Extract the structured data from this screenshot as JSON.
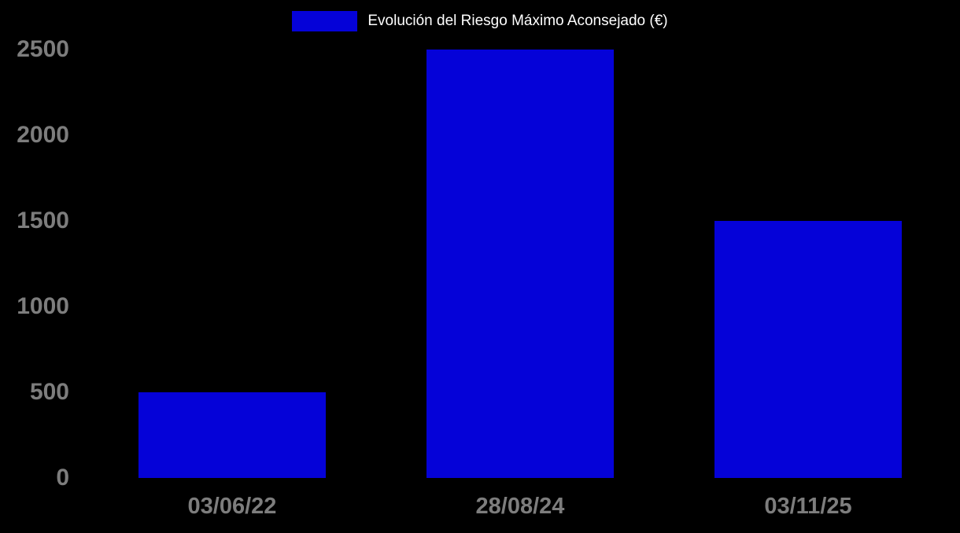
{
  "chart_data": {
    "type": "bar",
    "title": "Evolución del Riesgo Máximo Aconsejado (€)",
    "categories": [
      "03/06/22",
      "28/08/24",
      "03/11/25"
    ],
    "values": [
      500,
      2500,
      1500
    ],
    "xlabel": "",
    "ylabel": "",
    "ylim": [
      0,
      2500
    ],
    "yticks": [
      0,
      500,
      1000,
      1500,
      2000,
      2500
    ],
    "grid": false,
    "legend_position": "top-center",
    "colors": {
      "bar": "#0502d8",
      "background": "#000000",
      "tick_labels": "#7d7d7d",
      "legend_text": "#ffffff"
    }
  }
}
